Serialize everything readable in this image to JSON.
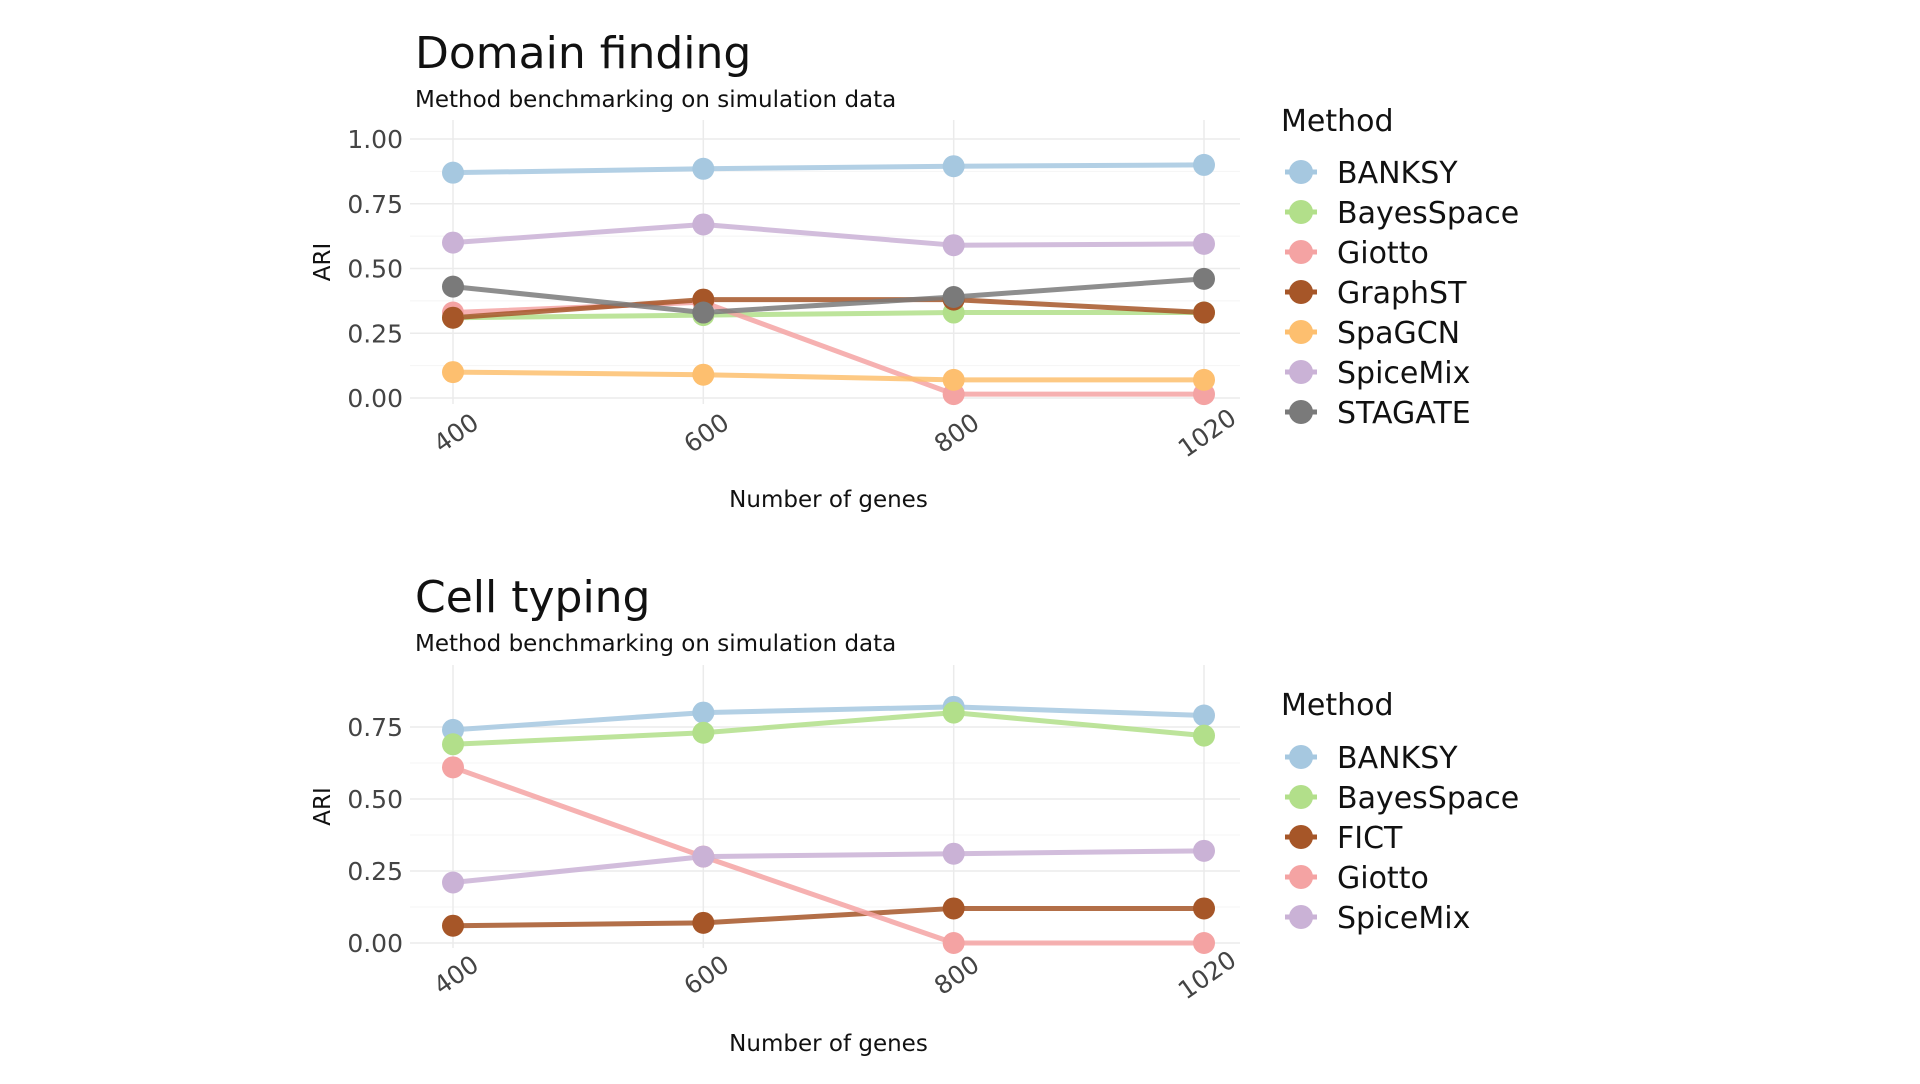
{
  "chart_data": [
    {
      "type": "line",
      "title": "Domain finding",
      "subtitle": "Method benchmarking on simulation data",
      "xlabel": "Number of genes",
      "ylabel": "ARI",
      "categories": [
        "400",
        "600",
        "800",
        "1020"
      ],
      "ylim": [
        0,
        1
      ],
      "yticks": [
        "0.00",
        "0.25",
        "0.50",
        "0.75",
        "1.00"
      ],
      "ytick_values": [
        0,
        0.25,
        0.5,
        0.75,
        1.0
      ],
      "grid": true,
      "legend": {
        "title": "Method",
        "position": "right"
      },
      "series": [
        {
          "name": "BANKSY",
          "color": "#a6c8e0",
          "values": [
            0.87,
            0.885,
            0.895,
            0.9
          ]
        },
        {
          "name": "BayesSpace",
          "color": "#b2df8a",
          "values": [
            0.31,
            0.32,
            0.33,
            0.33
          ]
        },
        {
          "name": "Giotto",
          "color": "#f4a3a3",
          "values": [
            0.33,
            0.37,
            0.015,
            0.015
          ]
        },
        {
          "name": "GraphST",
          "color": "#a65628",
          "values": [
            0.31,
            0.38,
            0.38,
            0.33
          ]
        },
        {
          "name": "SpaGCN",
          "color": "#fdbf6f",
          "values": [
            0.1,
            0.09,
            0.07,
            0.07
          ]
        },
        {
          "name": "SpiceMix",
          "color": "#cab2d6",
          "values": [
            0.6,
            0.67,
            0.59,
            0.595
          ]
        },
        {
          "name": "STAGATE",
          "color": "#7a7a7a",
          "values": [
            0.43,
            0.33,
            0.39,
            0.46
          ]
        }
      ]
    },
    {
      "type": "line",
      "title": "Cell typing",
      "subtitle": "Method benchmarking on simulation data",
      "xlabel": "Number of genes",
      "ylabel": "ARI",
      "categories": [
        "400",
        "600",
        "800",
        "1020"
      ],
      "ylim": [
        -0.03,
        0.85
      ],
      "yticks": [
        "0.00",
        "0.25",
        "0.50",
        "0.75"
      ],
      "ytick_values": [
        0,
        0.25,
        0.5,
        0.75
      ],
      "grid": true,
      "legend": {
        "title": "Method",
        "position": "right"
      },
      "series": [
        {
          "name": "BANKSY",
          "color": "#a6c8e0",
          "values": [
            0.74,
            0.8,
            0.82,
            0.79
          ]
        },
        {
          "name": "BayesSpace",
          "color": "#b2df8a",
          "values": [
            0.69,
            0.73,
            0.8,
            0.72
          ]
        },
        {
          "name": "FICT",
          "color": "#a65628",
          "values": [
            0.06,
            0.07,
            0.12,
            0.12
          ]
        },
        {
          "name": "Giotto",
          "color": "#f4a3a3",
          "values": [
            0.61,
            0.3,
            0.0,
            0.0
          ]
        },
        {
          "name": "SpiceMix",
          "color": "#cab2d6",
          "values": [
            0.21,
            0.3,
            0.31,
            0.32
          ]
        }
      ]
    }
  ]
}
